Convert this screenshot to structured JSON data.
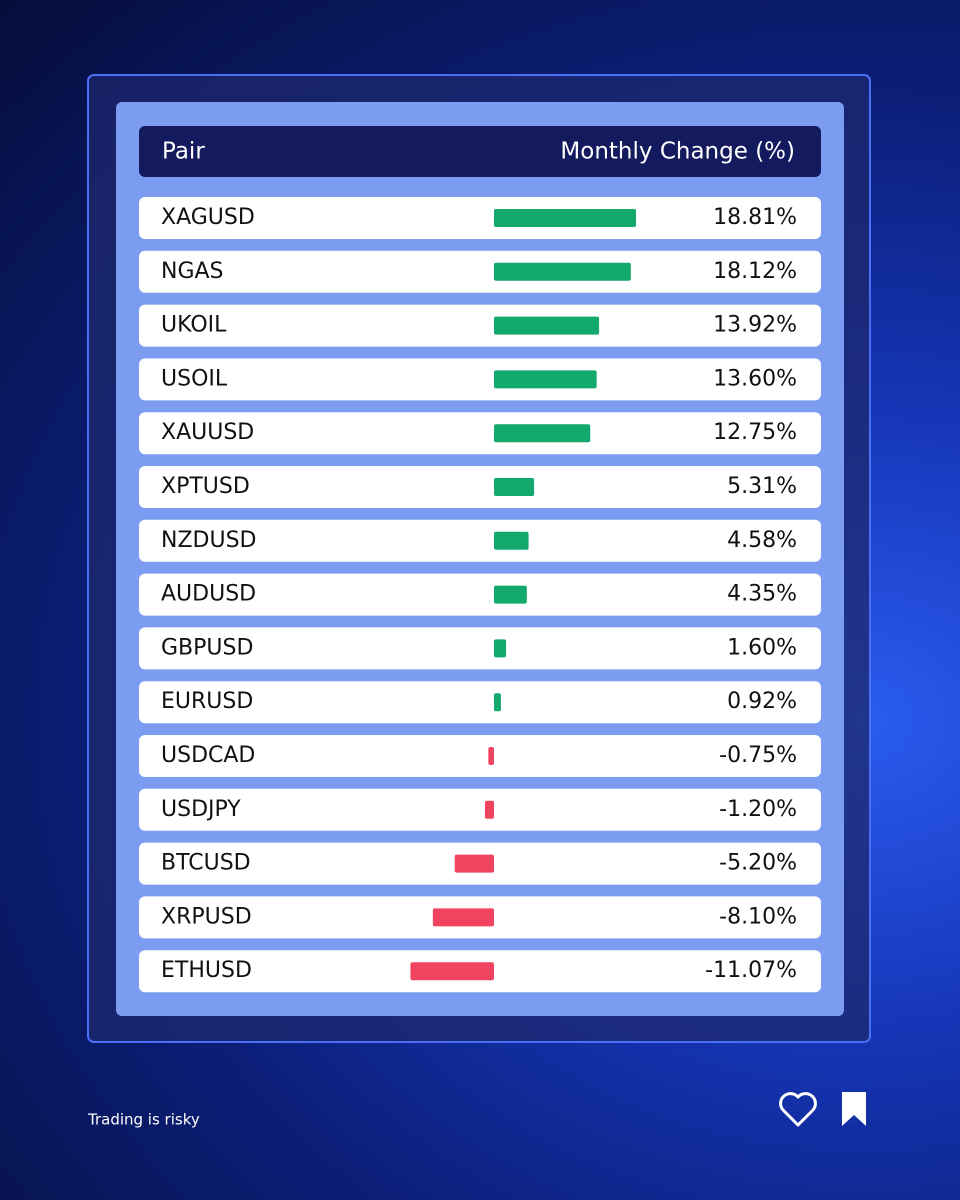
{
  "chart_data": {
    "type": "bar",
    "orientation": "horizontal",
    "category_header": "Pair",
    "value_header": "Monthly Change (%)",
    "categories": [
      "XAGUSD",
      "NGAS",
      "UKOIL",
      "USOIL",
      "XAUUSD",
      "XPTUSD",
      "NZDUSD",
      "AUDUSD",
      "GBPUSD",
      "EURUSD",
      "USDCAD",
      "USDJPY",
      "BTCUSD",
      "XRPUSD",
      "ETHUSD"
    ],
    "values": [
      18.81,
      18.12,
      13.92,
      13.6,
      12.75,
      5.31,
      4.58,
      4.35,
      1.6,
      0.92,
      -0.75,
      -1.2,
      -5.2,
      -8.1,
      -11.07
    ],
    "value_labels": [
      "18.81%",
      "18.12%",
      "13.92%",
      "13.60%",
      "12.75%",
      "5.31%",
      "4.58%",
      "4.35%",
      "1.60%",
      "0.92%",
      "-0.75%",
      "-1.20%",
      "-5.20%",
      "-8.10%",
      "-11.07%"
    ],
    "positive_color": "#13a86c",
    "negative_color": "#f0435f",
    "footer": "Trading is risky"
  }
}
